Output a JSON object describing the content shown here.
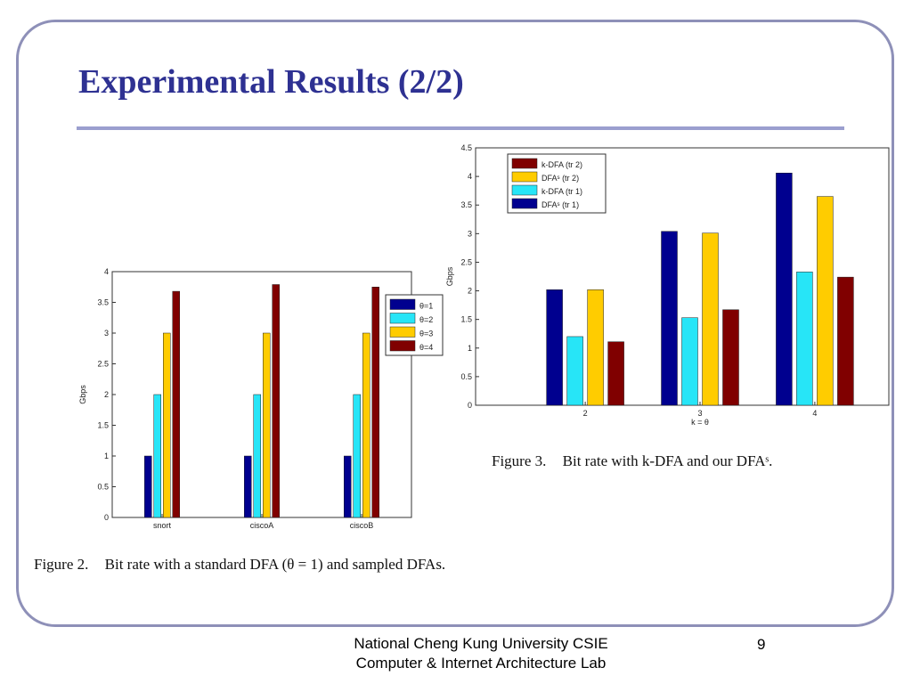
{
  "slide": {
    "title": "Experimental Results (2/2)",
    "footer_line1": "National Cheng Kung University CSIE",
    "footer_line2": "Computer & Internet Architecture Lab",
    "page_number": "9",
    "accent_color": "#2e3192"
  },
  "captions": {
    "fig2_tag": "Figure 2.",
    "fig2_text": "Bit rate with a standard DFA (θ = 1) and sampled DFAs.",
    "fig3_tag": "Figure 3.",
    "fig3_text": "Bit rate with k-DFA and our DFAˢ."
  },
  "chart_data": [
    {
      "type": "bar",
      "categories": [
        "snort",
        "ciscoA",
        "ciscoB"
      ],
      "series": [
        {
          "name": "θ=1",
          "color": "#00008f",
          "values": [
            1.0,
            1.0,
            1.0
          ]
        },
        {
          "name": "θ=2",
          "color": "#27e5f7",
          "values": [
            2.0,
            2.0,
            2.0
          ]
        },
        {
          "name": "θ=3",
          "color": "#ffcc00",
          "values": [
            3.0,
            3.0,
            3.0
          ]
        },
        {
          "name": "θ=4",
          "color": "#800000",
          "values": [
            3.68,
            3.79,
            3.75
          ]
        }
      ],
      "xlabel": "",
      "ylabel": "Gbps",
      "ylim": [
        0,
        4
      ],
      "yticks": [
        "0",
        "0.5",
        "1",
        "1.5",
        "2",
        "2.5",
        "3",
        "3.5",
        "4"
      ],
      "legend_position": "top-right",
      "legend_order": [
        0,
        1,
        2,
        3
      ],
      "grid": false
    },
    {
      "type": "bar",
      "categories": [
        "2",
        "3",
        "4"
      ],
      "series": [
        {
          "name": "DFAˢ (tr 1)",
          "color": "#00008f",
          "values": [
            2.02,
            3.04,
            4.06
          ]
        },
        {
          "name": "k-DFA (tr 1)",
          "color": "#27e5f7",
          "values": [
            1.2,
            1.53,
            2.33
          ]
        },
        {
          "name": "DFAˢ (tr 2)",
          "color": "#ffcc00",
          "values": [
            2.02,
            3.01,
            3.65
          ]
        },
        {
          "name": "k-DFA (tr 2)",
          "color": "#800000",
          "values": [
            1.11,
            1.67,
            2.24
          ]
        }
      ],
      "xlabel": "k = θ",
      "ylabel": "Gbps",
      "ylim": [
        0,
        4.5
      ],
      "yticks": [
        "0",
        "0.5",
        "1",
        "1.5",
        "2",
        "2.5",
        "3",
        "3.5",
        "4",
        "4.5"
      ],
      "legend_position": "top-left",
      "legend_order": [
        3,
        2,
        1,
        0
      ],
      "grid": false
    }
  ]
}
